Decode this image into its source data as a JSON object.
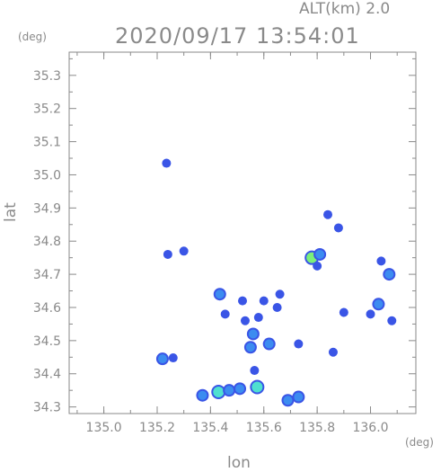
{
  "header": {
    "altitude_label": "ALT(km)  2.0",
    "timestamp": "2020/09/17 13:54:01"
  },
  "chart_data": {
    "type": "heatmap",
    "title": "2020/09/17 13:54:01",
    "subtitle": "ALT(km)  2.0",
    "xlabel": "lon",
    "ylabel": "lat",
    "x_unit": "(deg)",
    "y_unit": "(deg)",
    "xlim": [
      134.87,
      136.17
    ],
    "ylim": [
      34.28,
      35.37
    ],
    "x_ticks": [
      "135.0",
      "135.2",
      "135.4",
      "135.6",
      "135.8",
      "136.0"
    ],
    "y_ticks": [
      "34.3",
      "34.4",
      "34.5",
      "34.6",
      "34.7",
      "34.8",
      "34.9",
      "35.0",
      "35.1",
      "35.2",
      "35.3"
    ],
    "grid": false,
    "colors": {
      "weak": "#3a55e6",
      "moderate": "#3c8cf0",
      "strong": "#4fe0d0",
      "intense": "#7cf07a",
      "axis": "#8a8a8a"
    },
    "cells": [
      {
        "lon": 135.235,
        "lat": 35.035,
        "level": 1
      },
      {
        "lon": 135.24,
        "lat": 34.76,
        "level": 1
      },
      {
        "lon": 135.3,
        "lat": 34.77,
        "level": 1
      },
      {
        "lon": 135.22,
        "lat": 34.445,
        "level": 2
      },
      {
        "lon": 135.26,
        "lat": 34.448,
        "level": 1
      },
      {
        "lon": 135.37,
        "lat": 34.335,
        "level": 2
      },
      {
        "lon": 135.43,
        "lat": 34.345,
        "level": 3
      },
      {
        "lon": 135.47,
        "lat": 34.35,
        "level": 2
      },
      {
        "lon": 135.51,
        "lat": 34.355,
        "level": 2
      },
      {
        "lon": 135.575,
        "lat": 34.36,
        "level": 3
      },
      {
        "lon": 135.565,
        "lat": 34.41,
        "level": 1
      },
      {
        "lon": 135.69,
        "lat": 34.32,
        "level": 2
      },
      {
        "lon": 135.73,
        "lat": 34.33,
        "level": 2
      },
      {
        "lon": 135.435,
        "lat": 34.64,
        "level": 2
      },
      {
        "lon": 135.455,
        "lat": 34.58,
        "level": 1
      },
      {
        "lon": 135.52,
        "lat": 34.62,
        "level": 1
      },
      {
        "lon": 135.56,
        "lat": 34.52,
        "level": 2
      },
      {
        "lon": 135.55,
        "lat": 34.48,
        "level": 2
      },
      {
        "lon": 135.53,
        "lat": 34.56,
        "level": 1
      },
      {
        "lon": 135.6,
        "lat": 34.62,
        "level": 1
      },
      {
        "lon": 135.58,
        "lat": 34.57,
        "level": 1
      },
      {
        "lon": 135.62,
        "lat": 34.49,
        "level": 2
      },
      {
        "lon": 135.65,
        "lat": 34.6,
        "level": 1
      },
      {
        "lon": 135.66,
        "lat": 34.64,
        "level": 1
      },
      {
        "lon": 135.73,
        "lat": 34.49,
        "level": 1
      },
      {
        "lon": 135.78,
        "lat": 34.75,
        "level": 4
      },
      {
        "lon": 135.81,
        "lat": 34.76,
        "level": 2
      },
      {
        "lon": 135.8,
        "lat": 34.725,
        "level": 1
      },
      {
        "lon": 135.84,
        "lat": 34.88,
        "level": 1
      },
      {
        "lon": 135.88,
        "lat": 34.84,
        "level": 1
      },
      {
        "lon": 135.9,
        "lat": 34.585,
        "level": 1
      },
      {
        "lon": 135.86,
        "lat": 34.465,
        "level": 1
      },
      {
        "lon": 136.04,
        "lat": 34.74,
        "level": 1
      },
      {
        "lon": 136.07,
        "lat": 34.7,
        "level": 2
      },
      {
        "lon": 136.03,
        "lat": 34.61,
        "level": 2
      },
      {
        "lon": 136.08,
        "lat": 34.56,
        "level": 1
      },
      {
        "lon": 136.0,
        "lat": 34.58,
        "level": 1
      }
    ]
  }
}
